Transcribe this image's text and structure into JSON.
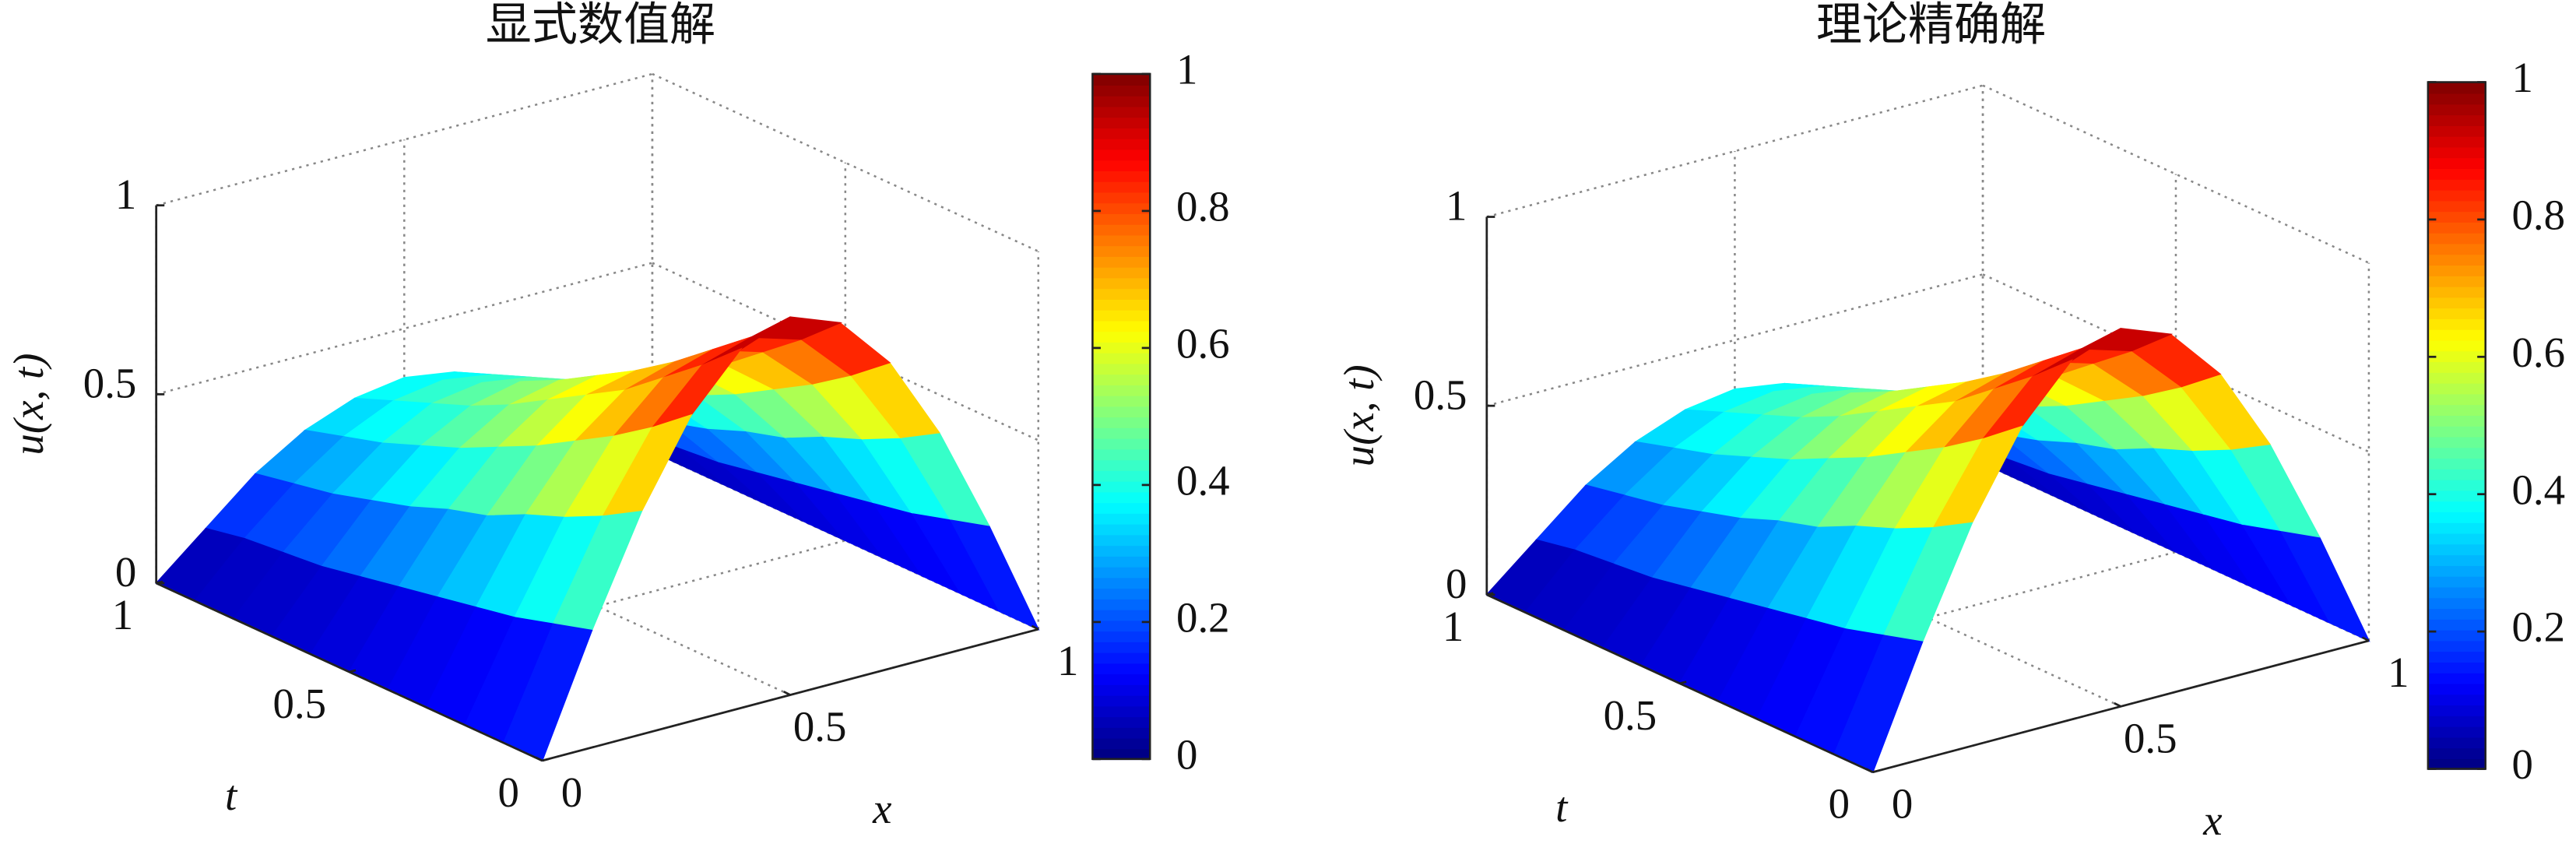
{
  "chart_data": [
    {
      "type": "surface",
      "title": "显式数值解",
      "xlabel": "x",
      "ylabel": "t",
      "zlabel": "u(x, t)",
      "colormap": "jet",
      "x": [
        0,
        0.1,
        0.2,
        0.3,
        0.4,
        0.5,
        0.6,
        0.7,
        0.8,
        0.9,
        1
      ],
      "y": [
        0,
        0.1,
        0.2,
        0.3,
        0.4,
        0.5,
        0.6,
        0.7,
        0.8,
        0.9,
        1
      ],
      "z": [
        [
          0,
          0.31,
          0.59,
          0.81,
          0.95,
          1,
          0.95,
          0.81,
          0.59,
          0.31,
          0
        ],
        [
          0,
          0.28,
          0.53,
          0.73,
          0.86,
          0.9,
          0.86,
          0.73,
          0.53,
          0.28,
          0
        ],
        [
          0,
          0.25,
          0.48,
          0.66,
          0.78,
          0.82,
          0.78,
          0.66,
          0.48,
          0.25,
          0
        ],
        [
          0,
          0.23,
          0.44,
          0.6,
          0.7,
          0.74,
          0.7,
          0.6,
          0.44,
          0.23,
          0
        ],
        [
          0,
          0.21,
          0.39,
          0.54,
          0.64,
          0.67,
          0.64,
          0.54,
          0.39,
          0.21,
          0
        ],
        [
          0,
          0.19,
          0.36,
          0.49,
          0.58,
          0.61,
          0.58,
          0.49,
          0.36,
          0.19,
          0
        ],
        [
          0,
          0.17,
          0.32,
          0.44,
          0.52,
          0.55,
          0.52,
          0.44,
          0.32,
          0.17,
          0
        ],
        [
          0,
          0.15,
          0.29,
          0.4,
          0.47,
          0.5,
          0.47,
          0.4,
          0.29,
          0.15,
          0
        ],
        [
          0,
          0.14,
          0.26,
          0.36,
          0.43,
          0.45,
          0.43,
          0.36,
          0.26,
          0.14,
          0
        ],
        [
          0,
          0.13,
          0.24,
          0.33,
          0.39,
          0.41,
          0.39,
          0.33,
          0.24,
          0.13,
          0
        ],
        [
          0,
          0.11,
          0.22,
          0.3,
          0.35,
          0.37,
          0.35,
          0.3,
          0.22,
          0.11,
          0
        ]
      ],
      "xlim": [
        0,
        1
      ],
      "ylim": [
        0,
        1
      ],
      "zlim": [
        0,
        1
      ],
      "xticks": [
        0,
        0.5,
        1
      ],
      "yticks": [
        0,
        0.5,
        1
      ],
      "zticks": [
        0,
        0.5,
        1
      ],
      "colorbar": {
        "lim": [
          0,
          1
        ],
        "ticks": [
          0,
          0.2,
          0.4,
          0.6,
          0.8,
          1
        ]
      },
      "grid": true
    },
    {
      "type": "surface",
      "title": "理论精确解",
      "xlabel": "x",
      "ylabel": "t",
      "zlabel": "u(x, t)",
      "colormap": "jet",
      "x": [
        0,
        0.1,
        0.2,
        0.3,
        0.4,
        0.5,
        0.6,
        0.7,
        0.8,
        0.9,
        1
      ],
      "y": [
        0,
        0.1,
        0.2,
        0.3,
        0.4,
        0.5,
        0.6,
        0.7,
        0.8,
        0.9,
        1
      ],
      "z": [
        [
          0,
          0.31,
          0.59,
          0.81,
          0.95,
          1,
          0.95,
          0.81,
          0.59,
          0.31,
          0
        ],
        [
          0,
          0.28,
          0.53,
          0.73,
          0.86,
          0.9,
          0.86,
          0.73,
          0.53,
          0.28,
          0
        ],
        [
          0,
          0.25,
          0.48,
          0.66,
          0.78,
          0.82,
          0.78,
          0.66,
          0.48,
          0.25,
          0
        ],
        [
          0,
          0.23,
          0.44,
          0.6,
          0.7,
          0.74,
          0.7,
          0.6,
          0.44,
          0.23,
          0
        ],
        [
          0,
          0.21,
          0.39,
          0.54,
          0.64,
          0.67,
          0.64,
          0.54,
          0.39,
          0.21,
          0
        ],
        [
          0,
          0.19,
          0.36,
          0.49,
          0.58,
          0.61,
          0.58,
          0.49,
          0.36,
          0.19,
          0
        ],
        [
          0,
          0.17,
          0.32,
          0.44,
          0.52,
          0.55,
          0.52,
          0.44,
          0.32,
          0.17,
          0
        ],
        [
          0,
          0.15,
          0.29,
          0.4,
          0.47,
          0.5,
          0.47,
          0.4,
          0.29,
          0.15,
          0
        ],
        [
          0,
          0.14,
          0.26,
          0.36,
          0.43,
          0.45,
          0.43,
          0.36,
          0.26,
          0.14,
          0
        ],
        [
          0,
          0.13,
          0.24,
          0.33,
          0.39,
          0.41,
          0.39,
          0.33,
          0.24,
          0.13,
          0
        ],
        [
          0,
          0.11,
          0.22,
          0.3,
          0.35,
          0.37,
          0.35,
          0.3,
          0.22,
          0.11,
          0
        ]
      ],
      "xlim": [
        0,
        1
      ],
      "ylim": [
        0,
        1
      ],
      "zlim": [
        0,
        1
      ],
      "xticks": [
        0,
        0.5,
        1
      ],
      "yticks": [
        0,
        0.5,
        1
      ],
      "zticks": [
        0,
        0.5,
        1
      ],
      "colorbar": {
        "lim": [
          0,
          1
        ],
        "ticks": [
          0,
          0.2,
          0.4,
          0.6,
          0.8,
          1
        ]
      },
      "grid": true
    }
  ]
}
